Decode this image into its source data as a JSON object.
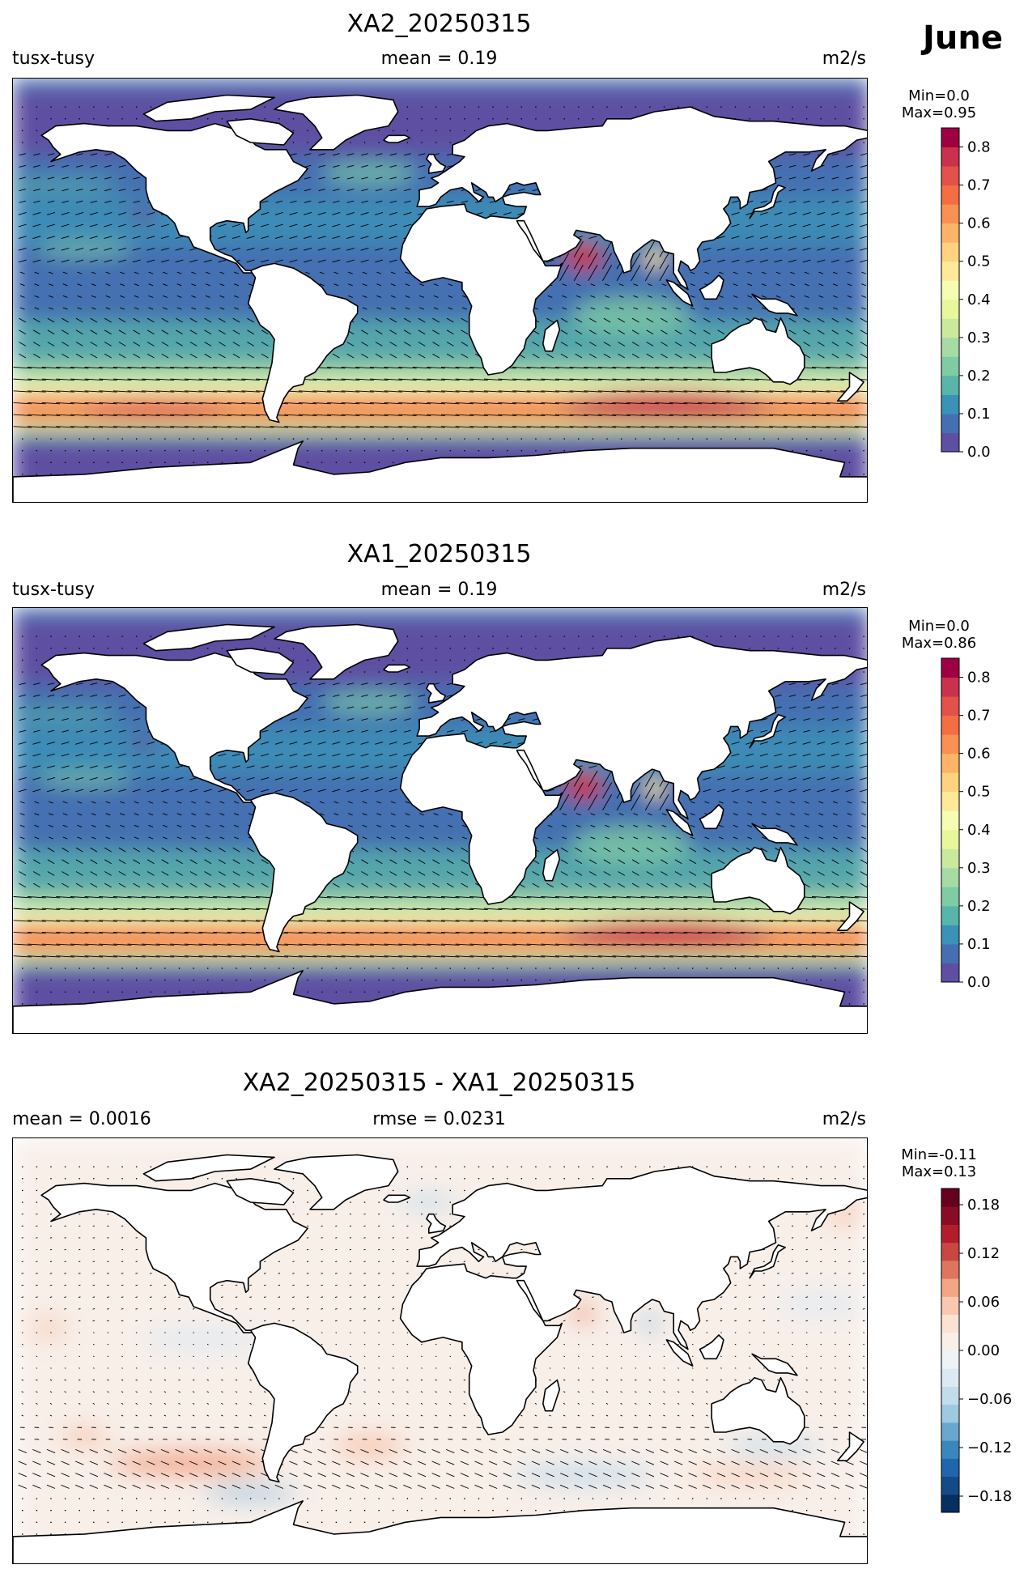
{
  "month": "June",
  "panels": [
    {
      "title": "XA2_20250315",
      "left_label": "tusx-tusy",
      "center_label": "mean = 0.19",
      "right_label": "m2/s",
      "min_label": "Min=0.0",
      "max_label": "Max=0.95",
      "colorbar": {
        "cmap": "Spectral_r",
        "range": [
          0,
          0.85
        ],
        "ticks": [
          0.0,
          0.1,
          0.2,
          0.3,
          0.4,
          0.5,
          0.6,
          0.7,
          0.8
        ],
        "tick_labels": [
          "0.0",
          "0.1",
          "0.2",
          "0.3",
          "0.4",
          "0.5",
          "0.6",
          "0.7",
          "0.8"
        ],
        "colors": [
          "#5e4fa2",
          "#4470b1",
          "#3b92b8",
          "#59b4aa",
          "#7ecba4",
          "#a6dba4",
          "#cae99d",
          "#e8f69c",
          "#f7fcb3",
          "#fee999",
          "#fed27f",
          "#fdb466",
          "#f99153",
          "#f46d43",
          "#e2514a",
          "#c9314c",
          "#9e0142"
        ]
      }
    },
    {
      "title": "XA1_20250315",
      "left_label": "tusx-tusy",
      "center_label": "mean = 0.19",
      "right_label": "m2/s",
      "min_label": "Min=0.0",
      "max_label": "Max=0.86",
      "colorbar": {
        "cmap": "Spectral_r",
        "range": [
          0,
          0.85
        ],
        "ticks": [
          0.0,
          0.1,
          0.2,
          0.3,
          0.4,
          0.5,
          0.6,
          0.7,
          0.8
        ],
        "tick_labels": [
          "0.0",
          "0.1",
          "0.2",
          "0.3",
          "0.4",
          "0.5",
          "0.6",
          "0.7",
          "0.8"
        ],
        "colors": [
          "#5e4fa2",
          "#4470b1",
          "#3b92b8",
          "#59b4aa",
          "#7ecba4",
          "#a6dba4",
          "#cae99d",
          "#e8f69c",
          "#f7fcb3",
          "#fee999",
          "#fed27f",
          "#fdb466",
          "#f99153",
          "#f46d43",
          "#e2514a",
          "#c9314c",
          "#9e0142"
        ]
      }
    },
    {
      "title": "XA2_20250315 - XA1_20250315",
      "left_label": "mean = 0.0016",
      "center_label": "rmse = 0.0231",
      "right_label": "m2/s",
      "min_label": "Min=-0.11",
      "max_label": "Max=0.13",
      "colorbar": {
        "cmap": "RdBu_r",
        "range": [
          -0.2,
          0.2
        ],
        "ticks": [
          -0.18,
          -0.12,
          -0.06,
          0.0,
          0.06,
          0.12,
          0.18
        ],
        "tick_labels": [
          "−0.18",
          "−0.12",
          "−0.06",
          "0.00",
          "0.06",
          "0.12",
          "0.18"
        ],
        "colors": [
          "#053061",
          "#134b87",
          "#2166ac",
          "#3a87bd",
          "#6aa7cf",
          "#9dc9e1",
          "#c3dcea",
          "#dde9f2",
          "#eef3f6",
          "#f8efe9",
          "#fbe3d4",
          "#f8c9b0",
          "#f2a683",
          "#de765f",
          "#c94741",
          "#b21d2c",
          "#8a0b25",
          "#67001f"
        ]
      }
    }
  ],
  "chart_data": [
    {
      "type": "heatmap",
      "title": "XA2_20250315",
      "subtitle_left": "tusx-tusy",
      "subtitle_center": "mean = 0.19",
      "units": "m2/s",
      "value_min": 0.0,
      "value_max": 0.95,
      "colorbar_range": [
        0,
        0.85
      ],
      "regions": [
        {
          "lon": [
            -180,
            180
          ],
          "lat": [
            -60,
            -40
          ],
          "value": 0.6
        },
        {
          "lon": [
            40,
            150
          ],
          "lat": [
            -55,
            -40
          ],
          "value": 0.75
        },
        {
          "lon": [
            50,
            70
          ],
          "lat": [
            8,
            22
          ],
          "value": 0.8
        },
        {
          "lon": [
            85,
            95
          ],
          "lat": [
            10,
            20
          ],
          "value": 0.5
        },
        {
          "lon": [
            -180,
            180
          ],
          "lat": [
            -30,
            -15
          ],
          "value": 0.25
        },
        {
          "lon": [
            -180,
            180
          ],
          "lat": [
            10,
            35
          ],
          "value": 0.15
        }
      ],
      "overlay": "velocity vectors (quiver)"
    },
    {
      "type": "heatmap",
      "title": "XA1_20250315",
      "subtitle_left": "tusx-tusy",
      "subtitle_center": "mean = 0.19",
      "units": "m2/s",
      "value_min": 0.0,
      "value_max": 0.86,
      "colorbar_range": [
        0,
        0.85
      ],
      "regions": [
        {
          "lon": [
            -180,
            180
          ],
          "lat": [
            -60,
            -40
          ],
          "value": 0.55
        },
        {
          "lon": [
            60,
            150
          ],
          "lat": [
            -55,
            -40
          ],
          "value": 0.8
        },
        {
          "lon": [
            50,
            70
          ],
          "lat": [
            8,
            22
          ],
          "value": 0.7
        },
        {
          "lon": [
            85,
            95
          ],
          "lat": [
            10,
            20
          ],
          "value": 0.45
        },
        {
          "lon": [
            -180,
            180
          ],
          "lat": [
            -30,
            -15
          ],
          "value": 0.25
        }
      ],
      "overlay": "velocity vectors (quiver)"
    },
    {
      "type": "heatmap",
      "title": "XA2_20250315 - XA1_20250315",
      "subtitle_left": "mean = 0.0016",
      "subtitle_center": "rmse = 0.0231",
      "units": "m2/s",
      "value_min": -0.11,
      "value_max": 0.13,
      "colorbar_range": [
        -0.2,
        0.2
      ],
      "regions": [
        {
          "lon": [
            -140,
            -70
          ],
          "lat": [
            -55,
            -40
          ],
          "value": 0.08
        },
        {
          "lon": [
            -50,
            -20
          ],
          "lat": [
            -45,
            -35
          ],
          "value": 0.06
        },
        {
          "lon": [
            100,
            160
          ],
          "lat": [
            -55,
            -45
          ],
          "value": 0.07
        },
        {
          "lon": [
            -90,
            -60
          ],
          "lat": [
            -62,
            -55
          ],
          "value": -0.07
        },
        {
          "lon": [
            30,
            90
          ],
          "lat": [
            -58,
            -48
          ],
          "value": -0.06
        },
        {
          "lon": [
            55,
            65
          ],
          "lat": [
            12,
            20
          ],
          "value": 0.08
        },
        {
          "lon": [
            85,
            95
          ],
          "lat": [
            8,
            18
          ],
          "value": -0.06
        },
        {
          "lon": [
            -20,
            10
          ],
          "lat": [
            58,
            68
          ],
          "value": -0.05
        }
      ],
      "overlay": "velocity difference vectors (quiver)"
    }
  ]
}
